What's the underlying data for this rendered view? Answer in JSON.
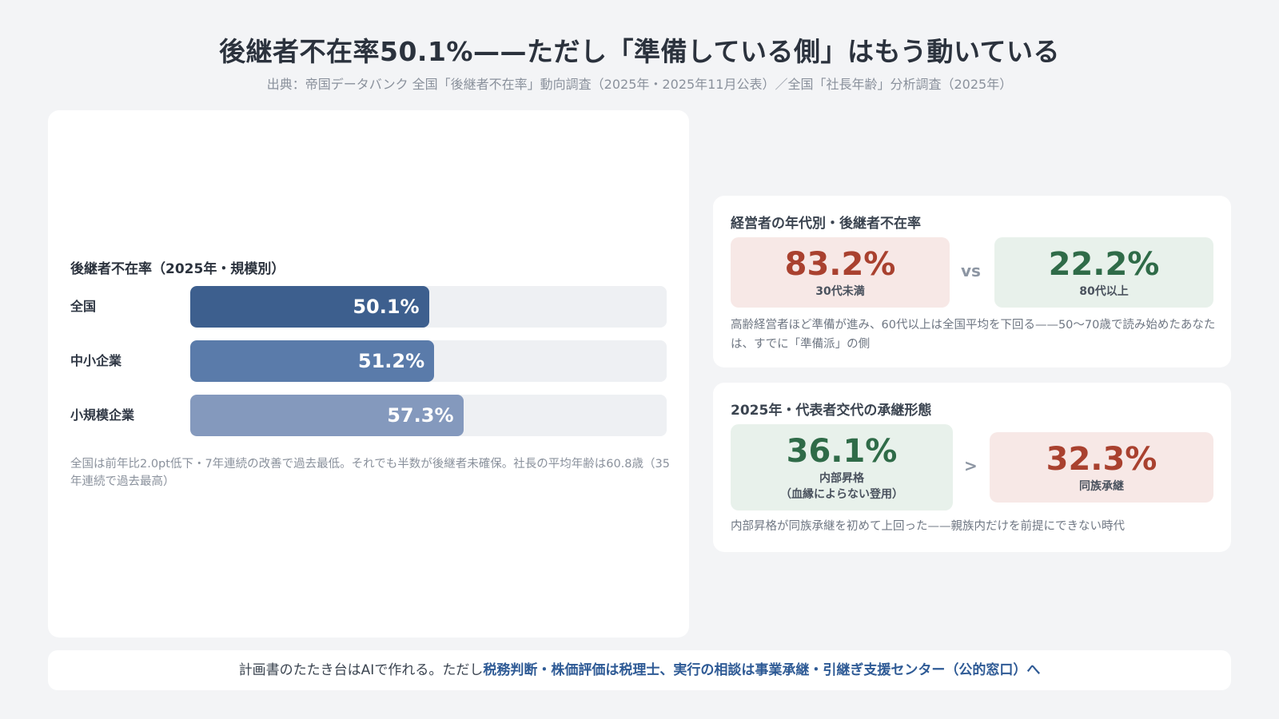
{
  "header": {
    "title": "後継者不在率50.1%——ただし「準備している側」はもう動いている",
    "subtitle": "出典：帝国データバンク 全国「後継者不在率」動向調査（2025年・2025年11月公表）／全国「社長年齢」分析調査（2025年）"
  },
  "chart_data": {
    "type": "bar",
    "orientation": "horizontal",
    "title": "後継者不在率（2025年・規模別）",
    "categories": [
      "全国",
      "中小企業",
      "小規模企業"
    ],
    "values": [
      50.1,
      51.2,
      57.3
    ],
    "value_labels": [
      "50.1%",
      "51.2%",
      "57.3%"
    ],
    "xlim": [
      0,
      100
    ],
    "colors": [
      "#3d5f8e",
      "#5a7baa",
      "#8499bd"
    ],
    "note": "全国は前年比2.0pt低下・7年連続の改善で過去最低。それでも半数が後継者未確保。社長の平均年齢は60.8歳（35年連続で過去最高）"
  },
  "age_card": {
    "title": "経営者の年代別・後継者不在率",
    "left_value": "83.2%",
    "left_label": "30代未満",
    "separator": "vs",
    "right_value": "22.2%",
    "right_label": "80代以上",
    "note": "高齢経営者ほど準備が進み、60代以上は全国平均を下回る——50〜70歳で読み始めたあなたは、すでに「準備派」の側"
  },
  "succession_card": {
    "title": "2025年・代表者交代の承継形態",
    "left_value": "36.1%",
    "left_label": "内部昇格",
    "left_sublabel": "（血縁によらない登用）",
    "separator": ">",
    "right_value": "32.3%",
    "right_label": "同族承継",
    "note": "内部昇格が同族承継を初めて上回った——親族内だけを前提にできない時代"
  },
  "footer": {
    "plain": "計画書のたたき台はAIで作れる。ただし",
    "highlight": "税務判断・株価評価は税理士、実行の相談は事業承継・引継ぎ支援センター（公的窓口）へ"
  },
  "colors": {
    "background": "#f3f4f6",
    "red_box": "#f7e8e6",
    "green_box": "#e8f1eb",
    "red_text": "#a9412f",
    "green_text": "#2f6b48",
    "accent": "#2e5a95"
  }
}
